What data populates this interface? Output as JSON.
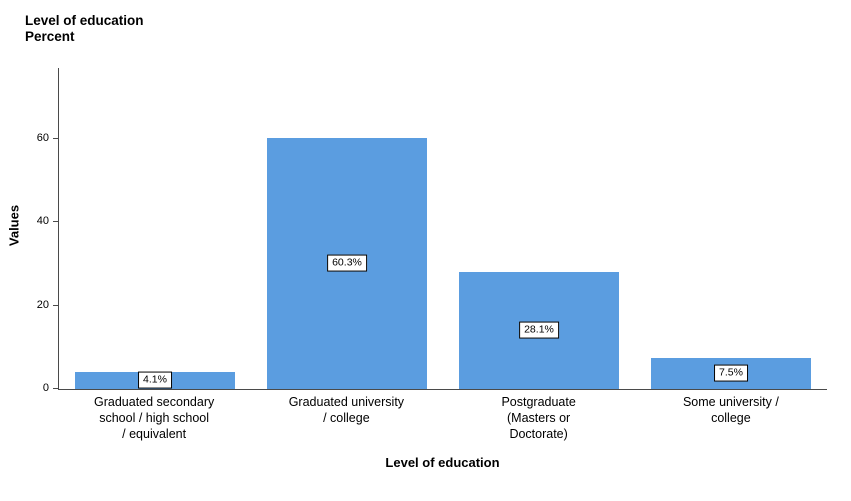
{
  "chart_data": {
    "type": "bar",
    "title": "Level of education",
    "subtitle": "Percent",
    "xlabel": "Level of education",
    "ylabel": "Values",
    "categories": [
      "Graduated secondary\nschool / high school\n/ equivalent",
      "Graduated university\n/ college",
      "Postgraduate\n(Masters or\nDoctorate)",
      "Some university /\ncollege"
    ],
    "values": [
      4.1,
      60.3,
      28.1,
      7.5
    ],
    "value_labels": [
      "4.1%",
      "60.3%",
      "28.1%",
      "7.5%"
    ],
    "yticks": [
      0,
      20,
      40,
      60
    ],
    "ylim": [
      0,
      77
    ],
    "grid": false,
    "legend": "none",
    "bar_color": "#5b9de0",
    "axis_color": "#4a4a4a"
  }
}
